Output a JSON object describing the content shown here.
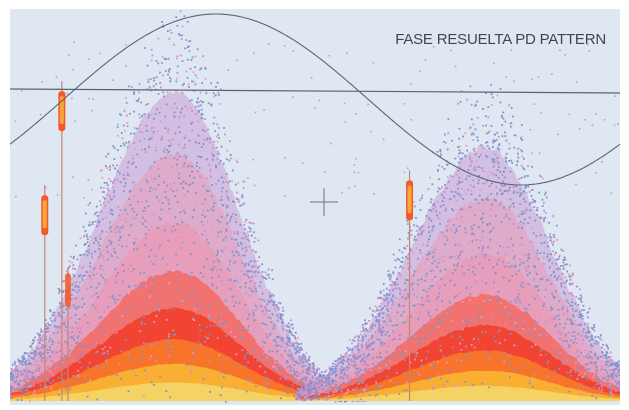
{
  "chart_data": {
    "type": "scatter",
    "title": "FASE RESUELTA PD PATTERN",
    "xlabel": "",
    "ylabel": "",
    "grid": false,
    "reference_line": {
      "shape": "sine",
      "cycles": 1
    },
    "zero_line": true,
    "cursor_marker": true,
    "clusters": [
      {
        "phase_center": 0.27,
        "width": 0.24,
        "peak_height": 0.83,
        "polarity": "positive"
      },
      {
        "phase_center": 0.78,
        "width": 0.24,
        "peak_height": 0.68,
        "polarity": "negative"
      }
    ],
    "spikes": [
      {
        "phase": 0.085,
        "height": 0.86
      },
      {
        "phase": 0.057,
        "height": 0.58
      },
      {
        "phase": 0.095,
        "height": 0.36
      },
      {
        "phase": 0.655,
        "height": 0.62
      }
    ],
    "density_colors": [
      "#7f93cc",
      "#c48fcf",
      "#ea9ab6",
      "#f26a62",
      "#f23f2b",
      "#f7772a",
      "#f9b232",
      "#f4d467"
    ]
  },
  "colors": {
    "background": "#dfe8f2",
    "trace": "#5b6472",
    "title": "#3f4650"
  }
}
